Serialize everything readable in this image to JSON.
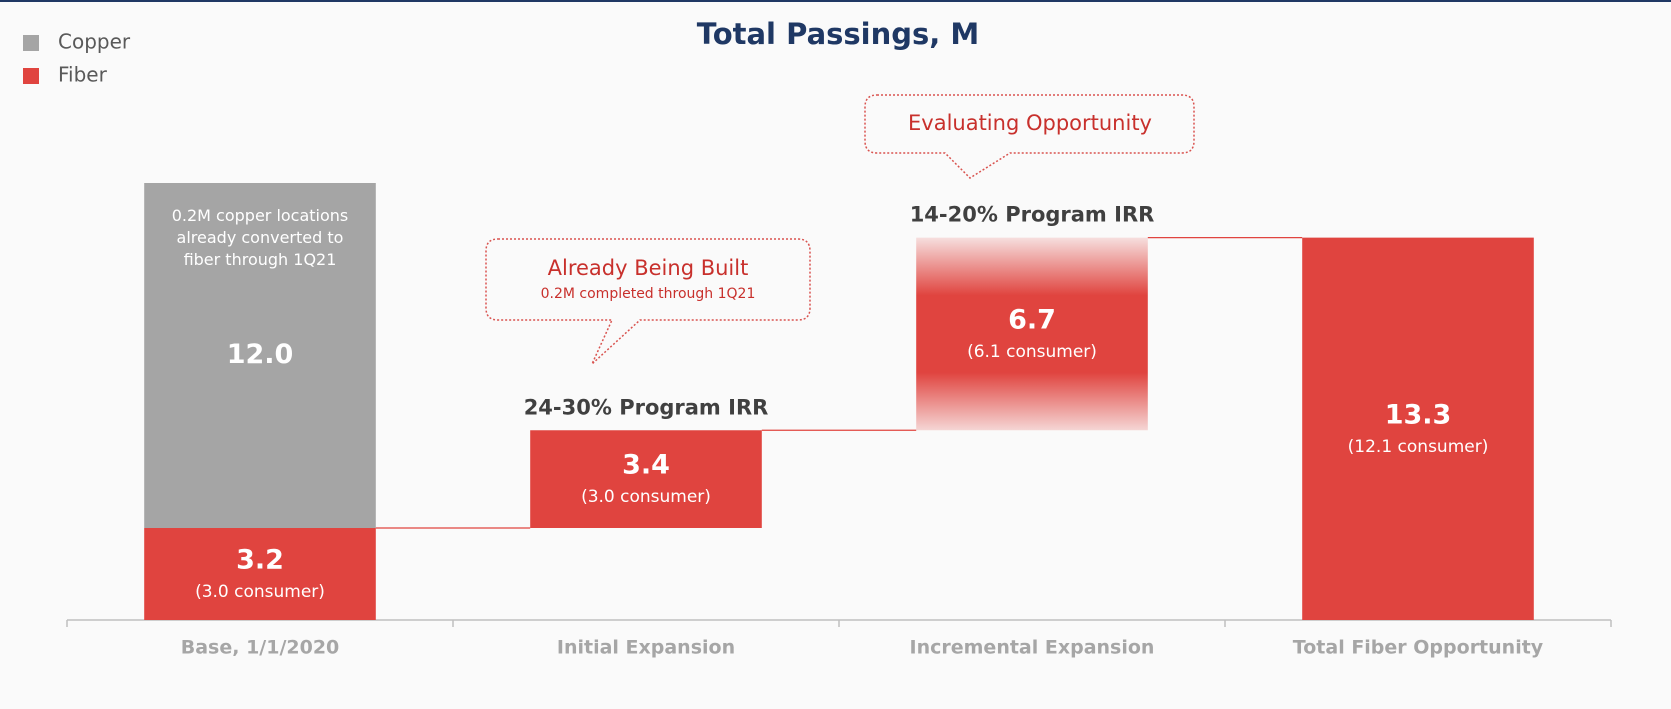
{
  "chart_data": {
    "type": "waterfall",
    "title": "Total Passings, M",
    "categories": [
      "Base, 1/1/2020",
      "Initial Expansion",
      "Incremental Expansion",
      "Total Fiber Opportunity"
    ],
    "measures": [
      "absolute",
      "relative",
      "relative",
      "total"
    ],
    "series": [
      {
        "name": "Copper",
        "color": "#a5a5a5",
        "values": [
          12.0,
          null,
          null,
          null
        ],
        "value_labels": [
          "12.0",
          null,
          null,
          null
        ]
      },
      {
        "name": "Fiber",
        "color": "#e0443f",
        "values": [
          3.2,
          3.4,
          6.7,
          13.3
        ],
        "sublabels": [
          "(3.0 consumer)",
          "(3.0 consumer)",
          "(6.1 consumer)",
          "(12.1 consumer)"
        ],
        "fill_styles": [
          "solid",
          "solid",
          "fade",
          "solid"
        ]
      }
    ],
    "annotations": [
      null,
      "24-30% Program IRR",
      "14-20% Program IRR",
      null
    ],
    "copper_note": "0.2M copper locations already converted to fiber through 1Q21",
    "callouts": [
      {
        "title": "Already Being Built",
        "subtitle": "0.2M completed through 1Q21"
      },
      {
        "title": "Evaluating Opportunity"
      }
    ],
    "legend": "top-left"
  }
}
